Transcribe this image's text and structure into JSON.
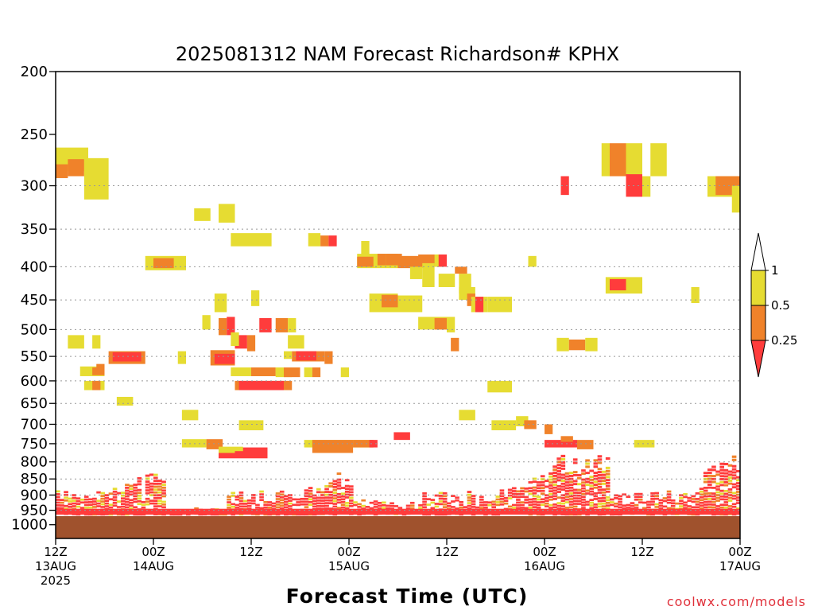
{
  "chart_data": {
    "type": "heatmap",
    "title": "2025081312 NAM Forecast Richardson# KPHX",
    "xlabel": "Forecast Time (UTC)",
    "ylabel": "",
    "y_scale": "log-pressure, inverted",
    "ylim_hPa": [
      1050,
      200
    ],
    "y_ticks": [
      200,
      250,
      300,
      350,
      400,
      450,
      500,
      550,
      600,
      650,
      700,
      750,
      800,
      850,
      900,
      950,
      1000
    ],
    "x_unit": "hours after 2025-08-13 12Z",
    "xlim_hours": [
      0,
      84
    ],
    "x_ticks": [
      {
        "hour": 0,
        "l1": "12Z",
        "l2": "13AUG",
        "l3": "2025"
      },
      {
        "hour": 12,
        "l1": "00Z",
        "l2": "14AUG",
        "l3": ""
      },
      {
        "hour": 24,
        "l1": "12Z",
        "l2": "",
        "l3": ""
      },
      {
        "hour": 36,
        "l1": "00Z",
        "l2": "15AUG",
        "l3": ""
      },
      {
        "hour": 48,
        "l1": "12Z",
        "l2": "",
        "l3": ""
      },
      {
        "hour": 60,
        "l1": "00Z",
        "l2": "16AUG",
        "l3": ""
      },
      {
        "hour": 72,
        "l1": "12Z",
        "l2": "",
        "l3": ""
      },
      {
        "hour": 84,
        "l1": "00Z",
        "l2": "17AUG",
        "l3": ""
      }
    ],
    "grid_levels": [
      300,
      350,
      400,
      450,
      500,
      550,
      600,
      650,
      700,
      750,
      800,
      850,
      900,
      950,
      1000
    ],
    "grid": "dotted horizontal lines at pressure levels",
    "legend": {
      "placement": "right",
      "labels": [
        "1",
        "0.5",
        "0.25"
      ],
      "categories": [
        {
          "range": "0.5-1",
          "color": "#e6dc32"
        },
        {
          "range": "0.25-0.5",
          "color": "#f0822a"
        },
        {
          "range": "<0.25",
          "color": "#ff3c3c"
        }
      ]
    },
    "colors": {
      "yellow": "#e6dc32",
      "orange": "#f0822a",
      "red": "#ff3c3c",
      "ground": "#a0522d"
    },
    "ground_hPa": 970,
    "cells": [
      {
        "t": [
          0,
          4
        ],
        "p": [
          262,
          285
        ],
        "c": "y"
      },
      {
        "t": [
          1.5,
          3.5
        ],
        "p": [
          273,
          290
        ],
        "c": "o"
      },
      {
        "t": [
          0,
          1.5
        ],
        "p": [
          278,
          292
        ],
        "c": "o"
      },
      {
        "t": [
          3.5,
          6.5
        ],
        "p": [
          272,
          315
        ],
        "c": "y"
      },
      {
        "t": [
          17,
          19
        ],
        "p": [
          325,
          340
        ],
        "c": "y"
      },
      {
        "t": [
          22,
          20
        ],
        "p": [
          320,
          342
        ],
        "c": "y"
      },
      {
        "t": [
          21.5,
          26.5
        ],
        "p": [
          355,
          372
        ],
        "c": "y"
      },
      {
        "t": [
          31,
          32.5
        ],
        "p": [
          355,
          372
        ],
        "c": "y"
      },
      {
        "t": [
          32.5,
          33.5
        ],
        "p": [
          358,
          372
        ],
        "c": "o"
      },
      {
        "t": [
          33.5,
          34.5
        ],
        "p": [
          358,
          372
        ],
        "c": "r"
      },
      {
        "t": [
          11,
          16
        ],
        "p": [
          385,
          405
        ],
        "c": "y"
      },
      {
        "t": [
          12,
          14.5
        ],
        "p": [
          388,
          402
        ],
        "c": "o"
      },
      {
        "t": [
          37,
          42
        ],
        "p": [
          382,
          402
        ],
        "c": "y"
      },
      {
        "t": [
          37,
          39
        ],
        "p": [
          386,
          400
        ],
        "c": "o"
      },
      {
        "t": [
          37.5,
          38.5
        ],
        "p": [
          365,
          385
        ],
        "c": "y"
      },
      {
        "t": [
          39.5,
          40.5
        ],
        "p": [
          382,
          398
        ],
        "c": "o"
      },
      {
        "t": [
          40.5,
          42.5
        ],
        "p": [
          382,
          398
        ],
        "c": "o"
      },
      {
        "t": [
          42,
          45.5
        ],
        "p": [
          385,
          402
        ],
        "c": "o"
      },
      {
        "t": [
          43.5,
          45
        ],
        "p": [
          400,
          418
        ],
        "c": "y"
      },
      {
        "t": [
          44.5,
          47
        ],
        "p": [
          383,
          400
        ],
        "c": "o"
      },
      {
        "t": [
          45,
          46.5
        ],
        "p": [
          395,
          430
        ],
        "c": "y"
      },
      {
        "t": [
          46.5,
          47.5
        ],
        "p": [
          383,
          400
        ],
        "c": "y"
      },
      {
        "t": [
          47,
          48
        ],
        "p": [
          383,
          400
        ],
        "c": "r"
      },
      {
        "t": [
          47,
          49
        ],
        "p": [
          410,
          430
        ],
        "c": "y"
      },
      {
        "t": [
          49.5,
          51
        ],
        "p": [
          410,
          440
        ],
        "c": "y"
      },
      {
        "t": [
          49,
          50.5
        ],
        "p": [
          400,
          410
        ],
        "c": "o"
      },
      {
        "t": [
          58,
          59
        ],
        "p": [
          385,
          400
        ],
        "c": "y"
      },
      {
        "t": [
          67.5,
          72
        ],
        "p": [
          415,
          440
        ],
        "c": "y"
      },
      {
        "t": [
          68,
          70
        ],
        "p": [
          418,
          435
        ],
        "c": "r"
      },
      {
        "t": [
          19.5,
          21
        ],
        "p": [
          440,
          470
        ],
        "c": "y"
      },
      {
        "t": [
          24,
          25
        ],
        "p": [
          435,
          460
        ],
        "c": "y"
      },
      {
        "t": [
          38.5,
          42
        ],
        "p": [
          440,
          470
        ],
        "c": "y"
      },
      {
        "t": [
          40,
          42
        ],
        "p": [
          442,
          462
        ],
        "c": "o"
      },
      {
        "t": [
          42,
          45
        ],
        "p": [
          443,
          470
        ],
        "c": "y"
      },
      {
        "t": [
          49.5,
          51.5
        ],
        "p": [
          430,
          450
        ],
        "c": "y"
      },
      {
        "t": [
          50.5,
          51.5
        ],
        "p": [
          440,
          460
        ],
        "c": "o"
      },
      {
        "t": [
          51,
          53
        ],
        "p": [
          445,
          470
        ],
        "c": "y"
      },
      {
        "t": [
          51.5,
          52.5
        ],
        "p": [
          445,
          470
        ],
        "c": "r"
      },
      {
        "t": [
          53,
          56
        ],
        "p": [
          445,
          470
        ],
        "c": "y"
      },
      {
        "t": [
          78,
          79
        ],
        "p": [
          430,
          455
        ],
        "c": "y"
      },
      {
        "t": [
          18,
          19
        ],
        "p": [
          475,
          500
        ],
        "c": "y"
      },
      {
        "t": [
          20,
          21
        ],
        "p": [
          480,
          510
        ],
        "c": "o"
      },
      {
        "t": [
          21,
          22
        ],
        "p": [
          478,
          510
        ],
        "c": "r"
      },
      {
        "t": [
          25,
          26.5
        ],
        "p": [
          480,
          505
        ],
        "c": "r"
      },
      {
        "t": [
          27,
          28.5
        ],
        "p": [
          480,
          505
        ],
        "c": "o"
      },
      {
        "t": [
          28.5,
          29.5
        ],
        "p": [
          480,
          505
        ],
        "c": "y"
      },
      {
        "t": [
          44.5,
          48
        ],
        "p": [
          478,
          500
        ],
        "c": "y"
      },
      {
        "t": [
          46.5,
          48
        ],
        "p": [
          480,
          500
        ],
        "c": "o"
      },
      {
        "t": [
          48,
          49
        ],
        "p": [
          478,
          505
        ],
        "c": "y"
      },
      {
        "t": [
          1.5,
          3.5
        ],
        "p": [
          510,
          535
        ],
        "c": "y"
      },
      {
        "t": [
          4.5,
          5.5
        ],
        "p": [
          510,
          535
        ],
        "c": "y"
      },
      {
        "t": [
          22,
          23.5
        ],
        "p": [
          510,
          535
        ],
        "c": "r"
      },
      {
        "t": [
          23.5,
          24.5
        ],
        "p": [
          510,
          540
        ],
        "c": "o"
      },
      {
        "t": [
          21.5,
          22.5
        ],
        "p": [
          505,
          530
        ],
        "c": "y"
      },
      {
        "t": [
          28.5,
          30.5
        ],
        "p": [
          510,
          535
        ],
        "c": "y"
      },
      {
        "t": [
          48.5,
          49.5
        ],
        "p": [
          515,
          540
        ],
        "c": "o"
      },
      {
        "t": [
          61.5,
          63
        ],
        "p": [
          515,
          540
        ],
        "c": "y"
      },
      {
        "t": [
          63,
          65
        ],
        "p": [
          518,
          538
        ],
        "c": "o"
      },
      {
        "t": [
          65,
          66.5
        ],
        "p": [
          515,
          540
        ],
        "c": "y"
      },
      {
        "t": [
          6.5,
          11
        ],
        "p": [
          540,
          565
        ],
        "c": "o"
      },
      {
        "t": [
          7,
          10.5
        ],
        "p": [
          542,
          560
        ],
        "c": "r"
      },
      {
        "t": [
          15,
          16
        ],
        "p": [
          540,
          565
        ],
        "c": "y"
      },
      {
        "t": [
          19,
          22
        ],
        "p": [
          538,
          568
        ],
        "c": "o"
      },
      {
        "t": [
          19.5,
          22
        ],
        "p": [
          545,
          565
        ],
        "c": "r"
      },
      {
        "t": [
          28,
          29
        ],
        "p": [
          540,
          555
        ],
        "c": "y"
      },
      {
        "t": [
          29,
          33
        ],
        "p": [
          540,
          560
        ],
        "c": "o"
      },
      {
        "t": [
          29.5,
          32
        ],
        "p": [
          540,
          558
        ],
        "c": "r"
      },
      {
        "t": [
          33,
          34
        ],
        "p": [
          540,
          565
        ],
        "c": "o"
      },
      {
        "t": [
          3,
          6
        ],
        "p": [
          570,
          590
        ],
        "c": "y"
      },
      {
        "t": [
          4.5,
          6
        ],
        "p": [
          572,
          588
        ],
        "c": "o"
      },
      {
        "t": [
          5,
          6
        ],
        "p": [
          565,
          578
        ],
        "c": "o"
      },
      {
        "t": [
          21.5,
          27
        ],
        "p": [
          572,
          590
        ],
        "c": "y"
      },
      {
        "t": [
          24,
          27
        ],
        "p": [
          572,
          590
        ],
        "c": "o"
      },
      {
        "t": [
          27,
          29
        ],
        "p": [
          572,
          592
        ],
        "c": "y"
      },
      {
        "t": [
          28,
          30
        ],
        "p": [
          572,
          592
        ],
        "c": "o"
      },
      {
        "t": [
          30.5,
          31.5
        ],
        "p": [
          572,
          592
        ],
        "c": "y"
      },
      {
        "t": [
          31.5,
          32.5
        ],
        "p": [
          572,
          592
        ],
        "c": "o"
      },
      {
        "t": [
          35,
          36
        ],
        "p": [
          572,
          592
        ],
        "c": "y"
      },
      {
        "t": [
          3.5,
          6
        ],
        "p": [
          600,
          620
        ],
        "c": "y"
      },
      {
        "t": [
          4.5,
          5.5
        ],
        "p": [
          600,
          620
        ],
        "c": "o"
      },
      {
        "t": [
          22,
          29
        ],
        "p": [
          600,
          620
        ],
        "c": "o"
      },
      {
        "t": [
          22.5,
          28
        ],
        "p": [
          600,
          620
        ],
        "c": "r"
      },
      {
        "t": [
          53,
          56
        ],
        "p": [
          600,
          625
        ],
        "c": "y"
      },
      {
        "t": [
          7.5,
          9.5
        ],
        "p": [
          635,
          655
        ],
        "c": "y"
      },
      {
        "t": [
          15.5,
          17.5
        ],
        "p": [
          665,
          690
        ],
        "c": "y"
      },
      {
        "t": [
          22.5,
          25.5
        ],
        "p": [
          690,
          715
        ],
        "c": "y"
      },
      {
        "t": [
          49.5,
          51.5
        ],
        "p": [
          665,
          690
        ],
        "c": "y"
      },
      {
        "t": [
          53.5,
          56.5
        ],
        "p": [
          690,
          715
        ],
        "c": "y"
      },
      {
        "t": [
          56.5,
          58
        ],
        "p": [
          680,
          705
        ],
        "c": "y"
      },
      {
        "t": [
          57.5,
          59
        ],
        "p": [
          690,
          712
        ],
        "c": "o"
      },
      {
        "t": [
          60,
          61
        ],
        "p": [
          700,
          725
        ],
        "c": "o"
      },
      {
        "t": [
          15.5,
          18.5
        ],
        "p": [
          738,
          760
        ],
        "c": "y"
      },
      {
        "t": [
          18.5,
          20.5
        ],
        "p": [
          738,
          765
        ],
        "c": "o"
      },
      {
        "t": [
          30.5,
          39
        ],
        "p": [
          740,
          760
        ],
        "c": "y"
      },
      {
        "t": [
          31.5,
          36.5
        ],
        "p": [
          740,
          775
        ],
        "c": "o"
      },
      {
        "t": [
          36.5,
          39
        ],
        "p": [
          740,
          760
        ],
        "c": "o"
      },
      {
        "t": [
          38.5,
          39.5
        ],
        "p": [
          740,
          760
        ],
        "c": "r"
      },
      {
        "t": [
          41.5,
          43.5
        ],
        "p": [
          720,
          740
        ],
        "c": "r"
      },
      {
        "t": [
          60,
          64
        ],
        "p": [
          740,
          760
        ],
        "c": "r"
      },
      {
        "t": [
          62,
          63.5
        ],
        "p": [
          730,
          745
        ],
        "c": "o"
      },
      {
        "t": [
          64,
          66
        ],
        "p": [
          740,
          765
        ],
        "c": "o"
      },
      {
        "t": [
          71,
          73.5
        ],
        "p": [
          740,
          760
        ],
        "c": "y"
      },
      {
        "t": [
          67,
          68
        ],
        "p": [
          258,
          290
        ],
        "c": "y"
      },
      {
        "t": [
          68,
          70
        ],
        "p": [
          258,
          290
        ],
        "c": "o"
      },
      {
        "t": [
          70,
          72
        ],
        "p": [
          258,
          290
        ],
        "c": "y"
      },
      {
        "t": [
          73,
          75
        ],
        "p": [
          258,
          290
        ],
        "c": "y"
      },
      {
        "t": [
          62,
          63
        ],
        "p": [
          290,
          310
        ],
        "c": "r"
      },
      {
        "t": [
          70,
          72
        ],
        "p": [
          288,
          312
        ],
        "c": "r"
      },
      {
        "t": [
          72,
          73
        ],
        "p": [
          290,
          312
        ],
        "c": "y"
      },
      {
        "t": [
          80,
          84
        ],
        "p": [
          290,
          312
        ],
        "c": "y"
      },
      {
        "t": [
          81,
          84
        ],
        "p": [
          290,
          310
        ],
        "c": "o"
      },
      {
        "t": [
          83,
          84
        ],
        "p": [
          300,
          330
        ],
        "c": "y"
      },
      {
        "t": [
          20,
          26
        ],
        "p": [
          760,
          790
        ],
        "c": "r"
      },
      {
        "t": [
          20,
          23
        ],
        "p": [
          758,
          775
        ],
        "c": "y"
      },
      {
        "t": [
          22,
          25
        ],
        "p": [
          770,
          785
        ],
        "c": "r"
      }
    ]
  },
  "credit": "coolwx.com/models"
}
